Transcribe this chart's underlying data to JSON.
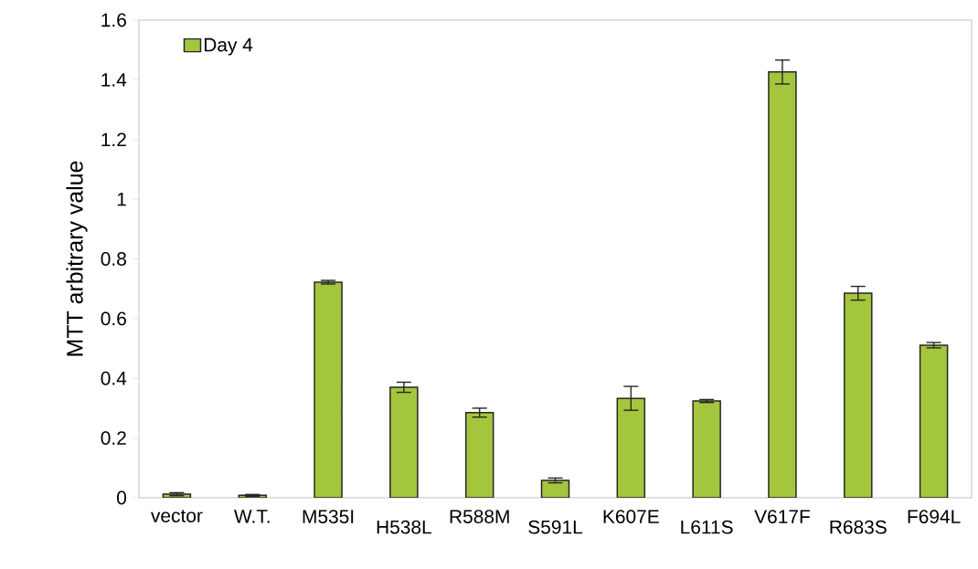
{
  "chart_data": {
    "type": "bar",
    "ylabel": "MTT arbitrary value",
    "categories": [
      "vector",
      "W.T.",
      "M535I",
      "H538L",
      "R588M",
      "S591L",
      "K607E",
      "L611S",
      "V617F",
      "R683S",
      "F694L"
    ],
    "series": [
      {
        "name": "Day 4",
        "color": "#a4c63d",
        "values": [
          0.012,
          0.008,
          0.722,
          0.37,
          0.285,
          0.058,
          0.333,
          0.324,
          1.426,
          0.685,
          0.511
        ],
        "errors": [
          0.005,
          0.003,
          0.006,
          0.017,
          0.015,
          0.008,
          0.04,
          0.005,
          0.04,
          0.023,
          0.009
        ]
      }
    ],
    "ylim": [
      0,
      1.6
    ],
    "yticks": [
      0,
      0.2,
      0.4,
      0.6,
      0.8,
      1,
      1.2,
      1.4,
      1.6
    ],
    "legend": "top left"
  }
}
